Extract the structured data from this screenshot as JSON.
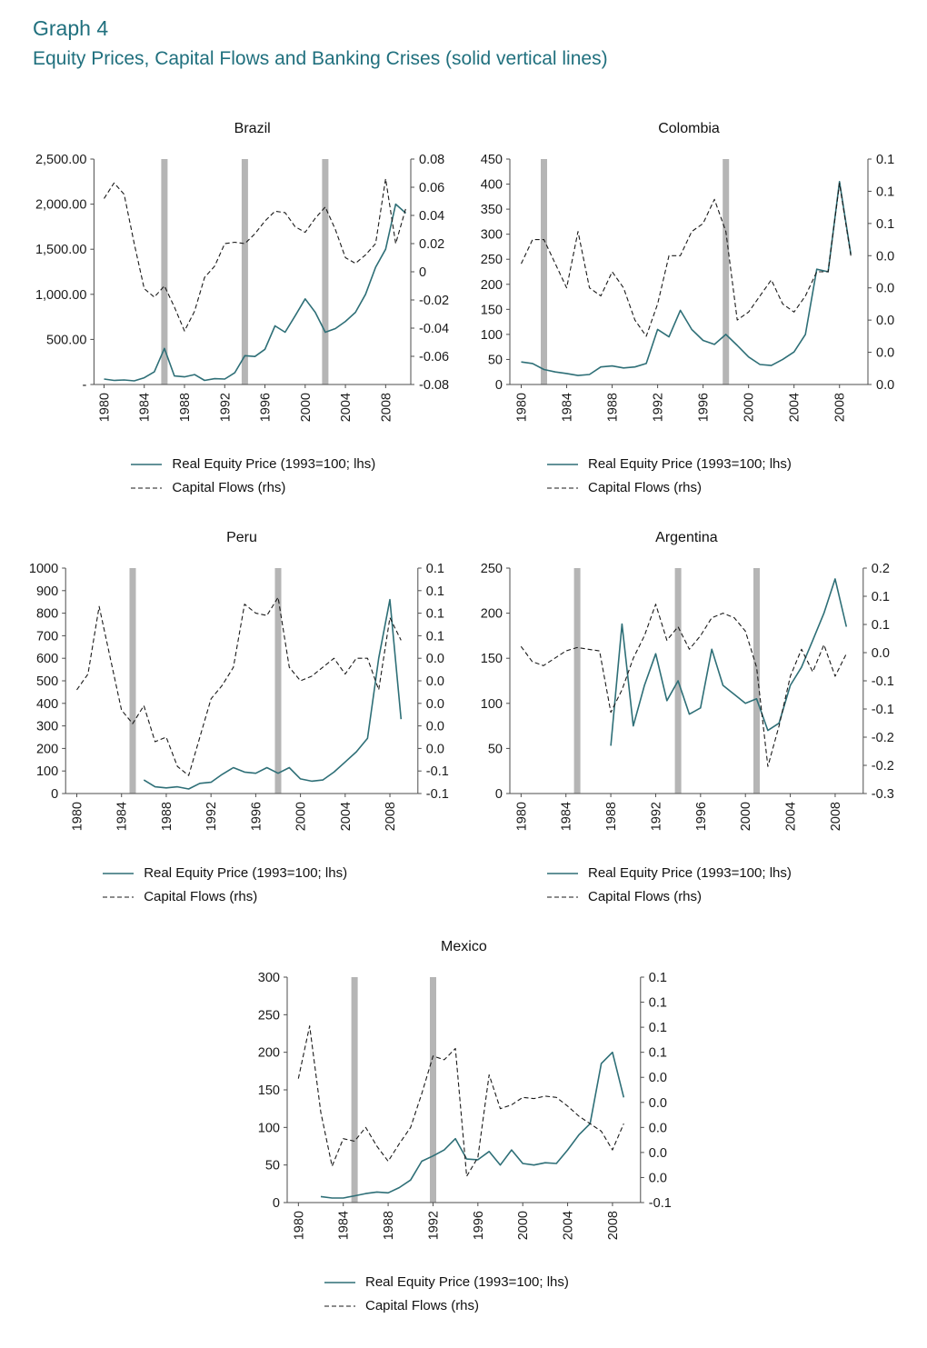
{
  "header": {
    "graph_label": "Graph 4",
    "title": "Equity Prices, Capital Flows and Banking Crises (solid vertical lines)"
  },
  "colors": {
    "heading": "#20707e",
    "equity_line": "#2e6f77",
    "flows_line": "#1a1a1a",
    "crisis_band": "#b5b5b5",
    "axis": "#4d4d4d"
  },
  "legend": {
    "equity": "Real Equity Price (1993=100; lhs)",
    "flows": "Capital Flows (rhs)"
  },
  "chart_data": [
    {
      "title": "Brazil",
      "type": "line",
      "x_range": [
        1979,
        2010.5
      ],
      "x_ticks": [
        1980,
        1984,
        1988,
        1992,
        1996,
        2000,
        2004,
        2008
      ],
      "crisis_years": [
        1986,
        1994,
        2002
      ],
      "left_axis": {
        "min": 0,
        "max": 2500,
        "ticks": [
          {
            "v": 2500,
            "label": "2,500.00"
          },
          {
            "v": 2000,
            "label": "2,000.00"
          },
          {
            "v": 1500,
            "label": "1,500.00"
          },
          {
            "v": 1000,
            "label": "1,000.00"
          },
          {
            "v": 500,
            "label": "500.00"
          },
          {
            "v": 0,
            "label": "-"
          }
        ]
      },
      "right_axis": {
        "min": -0.08,
        "max": 0.08,
        "ticks": [
          {
            "v": 0.08,
            "label": "0.08"
          },
          {
            "v": 0.06,
            "label": "0.06"
          },
          {
            "v": 0.04,
            "label": "0.04"
          },
          {
            "v": 0.02,
            "label": "0.02"
          },
          {
            "v": 0,
            "label": "0"
          },
          {
            "v": -0.02,
            "label": "-0.02"
          },
          {
            "v": -0.04,
            "label": "-0.04"
          },
          {
            "v": -0.06,
            "label": "-0.06"
          },
          {
            "v": -0.08,
            "label": "-0.08"
          }
        ]
      },
      "series": [
        {
          "name": "Real Equity Price (1993=100; lhs)",
          "axis": "left",
          "style": "solid",
          "x_start": 1980,
          "values": [
            60,
            45,
            50,
            40,
            75,
            140,
            400,
            95,
            85,
            110,
            45,
            65,
            60,
            130,
            320,
            310,
            390,
            650,
            580,
            760,
            950,
            800,
            580,
            620,
            700,
            800,
            1000,
            1300,
            1500,
            2000,
            1900
          ]
        },
        {
          "name": "Capital Flows (rhs)",
          "axis": "right",
          "style": "dashed",
          "x_start": 1980,
          "values": [
            0.052,
            0.063,
            0.055,
            0.02,
            -0.012,
            -0.018,
            -0.01,
            -0.025,
            -0.042,
            -0.028,
            -0.004,
            0.004,
            0.02,
            0.021,
            0.02,
            0.027,
            0.036,
            0.043,
            0.042,
            0.032,
            0.028,
            0.038,
            0.046,
            0.03,
            0.01,
            0.006,
            0.012,
            0.02,
            0.066,
            0.02,
            0.045
          ]
        }
      ]
    },
    {
      "title": "Colombia",
      "type": "line",
      "x_range": [
        1979,
        2010.5
      ],
      "x_ticks": [
        1980,
        1984,
        1988,
        1992,
        1996,
        2000,
        2004,
        2008
      ],
      "crisis_years": [
        1982,
        1998
      ],
      "left_axis": {
        "min": 0,
        "max": 450,
        "ticks": [
          {
            "v": 450,
            "label": "450"
          },
          {
            "v": 400,
            "label": "400"
          },
          {
            "v": 350,
            "label": "350"
          },
          {
            "v": 300,
            "label": "300"
          },
          {
            "v": 250,
            "label": "250"
          },
          {
            "v": 200,
            "label": "200"
          },
          {
            "v": 150,
            "label": "150"
          },
          {
            "v": 100,
            "label": "100"
          },
          {
            "v": 50,
            "label": "50"
          },
          {
            "v": 0,
            "label": "0"
          }
        ]
      },
      "right_axis": {
        "min": -0.04,
        "max": 0.1,
        "ticks": [
          {
            "v": 0.1,
            "label": "0.1"
          },
          {
            "v": 0.08,
            "label": "0.1"
          },
          {
            "v": 0.06,
            "label": "0.1"
          },
          {
            "v": 0.04,
            "label": "0.0"
          },
          {
            "v": 0.02,
            "label": "0.0"
          },
          {
            "v": 0,
            "label": "0.0"
          },
          {
            "v": -0.02,
            "label": "0.0"
          },
          {
            "v": -0.04,
            "label": "0.0"
          }
        ]
      },
      "series": [
        {
          "name": "Real Equity Price (1993=100; lhs)",
          "axis": "left",
          "style": "solid",
          "x_start": 1980,
          "values": [
            45,
            42,
            30,
            25,
            22,
            18,
            20,
            35,
            37,
            33,
            35,
            42,
            110,
            95,
            148,
            110,
            88,
            80,
            100,
            78,
            55,
            40,
            38,
            50,
            65,
            100,
            230,
            225,
            405,
            260
          ]
        },
        {
          "name": "Capital Flows (rhs)",
          "axis": "right",
          "style": "dashed",
          "x_start": 1980,
          "values": [
            0.035,
            0.05,
            0.05,
            0.035,
            0.02,
            0.055,
            0.02,
            0.015,
            0.03,
            0.02,
            0.0,
            -0.01,
            0.01,
            0.04,
            0.04,
            0.055,
            0.06,
            0.075,
            0.055,
            0.0,
            0.005,
            0.015,
            0.025,
            0.01,
            0.005,
            0.015,
            0.03,
            0.03,
            0.085,
            0.04
          ]
        }
      ]
    },
    {
      "title": "Peru",
      "type": "line",
      "x_range": [
        1979,
        2010.5
      ],
      "x_ticks": [
        1980,
        1984,
        1988,
        1992,
        1996,
        2000,
        2004,
        2008
      ],
      "crisis_years": [
        1985,
        1998
      ],
      "left_axis": {
        "min": 0,
        "max": 1000,
        "ticks": [
          {
            "v": 1000,
            "label": "1000"
          },
          {
            "v": 900,
            "label": "900"
          },
          {
            "v": 800,
            "label": "800"
          },
          {
            "v": 700,
            "label": "700"
          },
          {
            "v": 600,
            "label": "600"
          },
          {
            "v": 500,
            "label": "500"
          },
          {
            "v": 400,
            "label": "400"
          },
          {
            "v": 300,
            "label": "300"
          },
          {
            "v": 200,
            "label": "200"
          },
          {
            "v": 100,
            "label": "100"
          },
          {
            "v": 0,
            "label": "0"
          }
        ]
      },
      "right_axis": {
        "min": -0.08,
        "max": 0.12,
        "ticks": [
          {
            "v": 0.12,
            "label": "0.1"
          },
          {
            "v": 0.1,
            "label": "0.1"
          },
          {
            "v": 0.08,
            "label": "0.1"
          },
          {
            "v": 0.06,
            "label": "0.1"
          },
          {
            "v": 0.04,
            "label": "0.0"
          },
          {
            "v": 0.02,
            "label": "0.0"
          },
          {
            "v": 0,
            "label": "0.0"
          },
          {
            "v": -0.02,
            "label": "0.0"
          },
          {
            "v": -0.04,
            "label": "0.0"
          },
          {
            "v": -0.06,
            "label": "-0.1"
          },
          {
            "v": -0.08,
            "label": "-0.1"
          }
        ]
      },
      "series": [
        {
          "name": "Real Equity Price (1993=100; lhs)",
          "axis": "left",
          "style": "solid",
          "x_start": 1986,
          "values": [
            60,
            30,
            25,
            30,
            20,
            45,
            50,
            85,
            115,
            95,
            90,
            115,
            90,
            115,
            65,
            55,
            60,
            95,
            140,
            185,
            245,
            600,
            860,
            330
          ]
        },
        {
          "name": "Capital Flows (rhs)",
          "axis": "right",
          "style": "dashed",
          "x_start": 1980,
          "values": [
            0.012,
            0.026,
            0.086,
            0.04,
            -0.006,
            -0.018,
            -0.002,
            -0.034,
            -0.03,
            -0.056,
            -0.064,
            -0.03,
            0.004,
            0.016,
            0.032,
            0.088,
            0.08,
            0.078,
            0.094,
            0.032,
            0.02,
            0.024,
            0.032,
            0.04,
            0.026,
            0.04,
            0.04,
            0.012,
            0.076,
            0.056
          ]
        }
      ]
    },
    {
      "title": "Argentina",
      "type": "line",
      "x_range": [
        1979,
        2010.5
      ],
      "x_ticks": [
        1980,
        1984,
        1988,
        1992,
        1996,
        2000,
        2004,
        2008
      ],
      "crisis_years": [
        1985,
        1994,
        2001
      ],
      "left_axis": {
        "min": 0,
        "max": 250,
        "ticks": [
          {
            "v": 250,
            "label": "250"
          },
          {
            "v": 200,
            "label": "200"
          },
          {
            "v": 150,
            "label": "150"
          },
          {
            "v": 100,
            "label": "100"
          },
          {
            "v": 50,
            "label": "50"
          },
          {
            "v": 0,
            "label": "0"
          }
        ]
      },
      "right_axis": {
        "min": -0.25,
        "max": 0.15,
        "ticks": [
          {
            "v": 0.15,
            "label": "0.2"
          },
          {
            "v": 0.1,
            "label": "0.1"
          },
          {
            "v": 0.05,
            "label": "0.1"
          },
          {
            "v": 0,
            "label": "0.0"
          },
          {
            "v": -0.05,
            "label": "-0.1"
          },
          {
            "v": -0.1,
            "label": "-0.1"
          },
          {
            "v": -0.15,
            "label": "-0.2"
          },
          {
            "v": -0.2,
            "label": "-0.2"
          },
          {
            "v": -0.25,
            "label": "-0.3"
          }
        ]
      },
      "series": [
        {
          "name": "Real Equity Price (1993=100; lhs)",
          "axis": "left",
          "style": "solid",
          "x_start": 1988,
          "values": [
            53,
            188,
            75,
            120,
            155,
            103,
            125,
            88,
            95,
            160,
            120,
            110,
            100,
            105,
            70,
            78,
            120,
            140,
            170,
            200,
            238,
            185
          ]
        },
        {
          "name": "Capital Flows (rhs)",
          "axis": "right",
          "style": "dashed",
          "x_start": 1980,
          "values": [
            0.011,
            -0.016,
            -0.023,
            -0.01,
            0.003,
            0.009,
            0.006,
            0.003,
            -0.106,
            -0.066,
            -0.01,
            0.03,
            0.086,
            0.022,
            0.046,
            0.006,
            0.03,
            0.062,
            0.07,
            0.062,
            0.038,
            -0.026,
            -0.202,
            -0.13,
            -0.042,
            0.006,
            -0.034,
            0.014,
            -0.042,
            -0.002
          ]
        }
      ]
    },
    {
      "title": "Mexico",
      "type": "line",
      "x_range": [
        1979,
        2010.5
      ],
      "x_ticks": [
        1980,
        1984,
        1988,
        1992,
        1996,
        2000,
        2004,
        2008
      ],
      "crisis_years": [
        1985,
        1992
      ],
      "left_axis": {
        "min": 0,
        "max": 300,
        "ticks": [
          {
            "v": 300,
            "label": "300"
          },
          {
            "v": 250,
            "label": "250"
          },
          {
            "v": 200,
            "label": "200"
          },
          {
            "v": 150,
            "label": "150"
          },
          {
            "v": 100,
            "label": "100"
          },
          {
            "v": 50,
            "label": "50"
          },
          {
            "v": 0,
            "label": "0"
          }
        ]
      },
      "right_axis": {
        "min": -0.06,
        "max": 0.12,
        "ticks": [
          {
            "v": 0.12,
            "label": "0.1"
          },
          {
            "v": 0.1,
            "label": "0.1"
          },
          {
            "v": 0.08,
            "label": "0.1"
          },
          {
            "v": 0.06,
            "label": "0.1"
          },
          {
            "v": 0.04,
            "label": "0.0"
          },
          {
            "v": 0.02,
            "label": "0.0"
          },
          {
            "v": 0,
            "label": "0.0"
          },
          {
            "v": -0.02,
            "label": "0.0"
          },
          {
            "v": -0.04,
            "label": "0.0"
          },
          {
            "v": -0.06,
            "label": "-0.1"
          }
        ]
      },
      "series": [
        {
          "name": "Real Equity Price (1993=100; lhs)",
          "axis": "left",
          "style": "solid",
          "x_start": 1982,
          "values": [
            8,
            6,
            6,
            9,
            12,
            14,
            13,
            20,
            30,
            55,
            62,
            70,
            85,
            58,
            57,
            68,
            50,
            70,
            52,
            50,
            53,
            52,
            70,
            90,
            105,
            185,
            200,
            140
          ]
        },
        {
          "name": "Capital Flows (rhs)",
          "axis": "right",
          "style": "dashed",
          "x_start": 1980,
          "values": [
            0.039,
            0.081,
            0.012,
            -0.031,
            -0.009,
            -0.011,
            0.0,
            -0.015,
            -0.027,
            -0.013,
            0.0,
            0.027,
            0.057,
            0.054,
            0.063,
            -0.039,
            -0.024,
            0.042,
            0.015,
            0.018,
            0.024,
            0.023,
            0.025,
            0.024,
            0.017,
            0.009,
            0.003,
            -0.003,
            -0.018,
            0.003
          ]
        }
      ]
    }
  ]
}
